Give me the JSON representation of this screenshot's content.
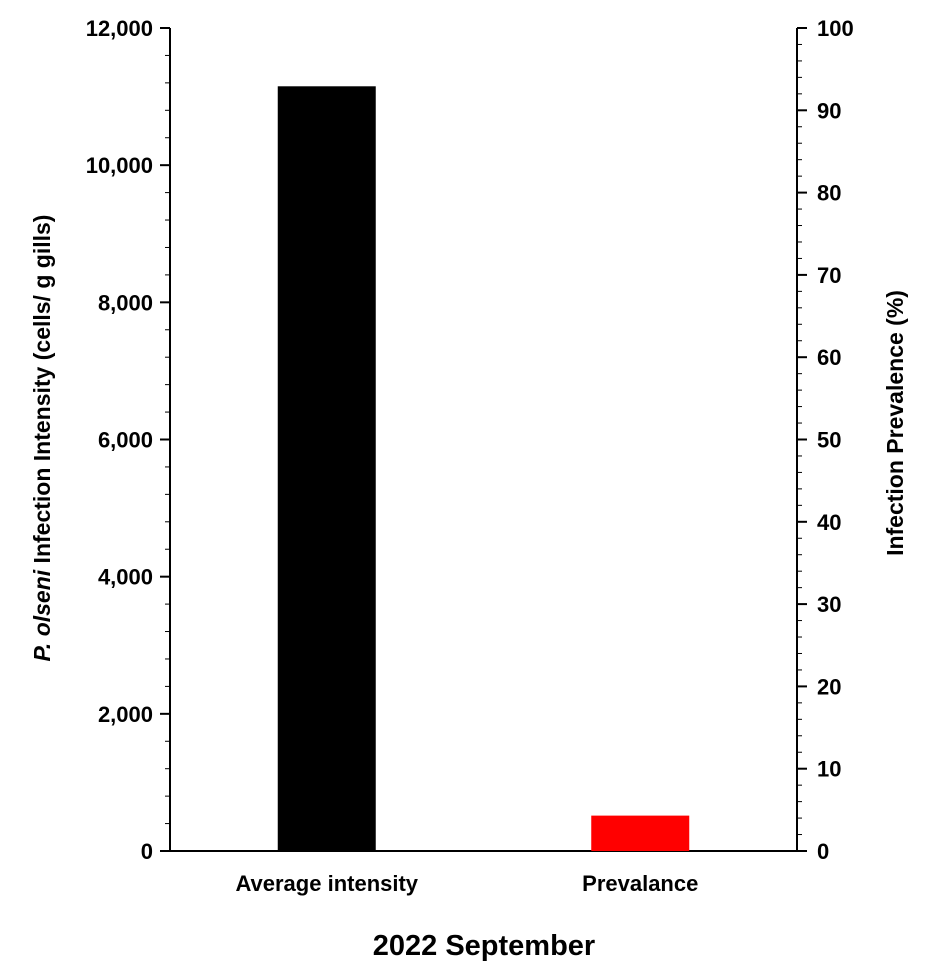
{
  "chart_data": {
    "type": "bar",
    "title": "",
    "xlabel": "2022 September",
    "categories": [
      "Average intensity",
      "Prevalance"
    ],
    "series": [
      {
        "axis": "left",
        "category": "Average intensity",
        "values": [
          11150,
          null
        ],
        "color": "#000000"
      },
      {
        "axis": "right",
        "category": "Prevalance",
        "values": [
          null,
          4.3
        ],
        "color": "#ff0000"
      }
    ],
    "y_left": {
      "label_italic": "P. olseni",
      "label_rest": " Infection Intensity (cells/ g gills)",
      "ylim": [
        0,
        12000
      ],
      "ticks": [
        0,
        2000,
        4000,
        6000,
        8000,
        10000,
        12000
      ],
      "tick_labels": [
        "0",
        "2,000",
        "4,000",
        "6,000",
        "8,000",
        "10,000",
        "12,000"
      ],
      "minor_step": 400
    },
    "y_right": {
      "label": "Infection Prevalence (%)",
      "ylim": [
        0,
        100
      ],
      "ticks": [
        0,
        10,
        20,
        30,
        40,
        50,
        60,
        70,
        80,
        90,
        100
      ],
      "tick_labels": [
        "0",
        "10",
        "20",
        "30",
        "40",
        "50",
        "60",
        "70",
        "80",
        "90",
        "100"
      ],
      "minor_step": 2
    },
    "grid": false,
    "legend": "none"
  }
}
